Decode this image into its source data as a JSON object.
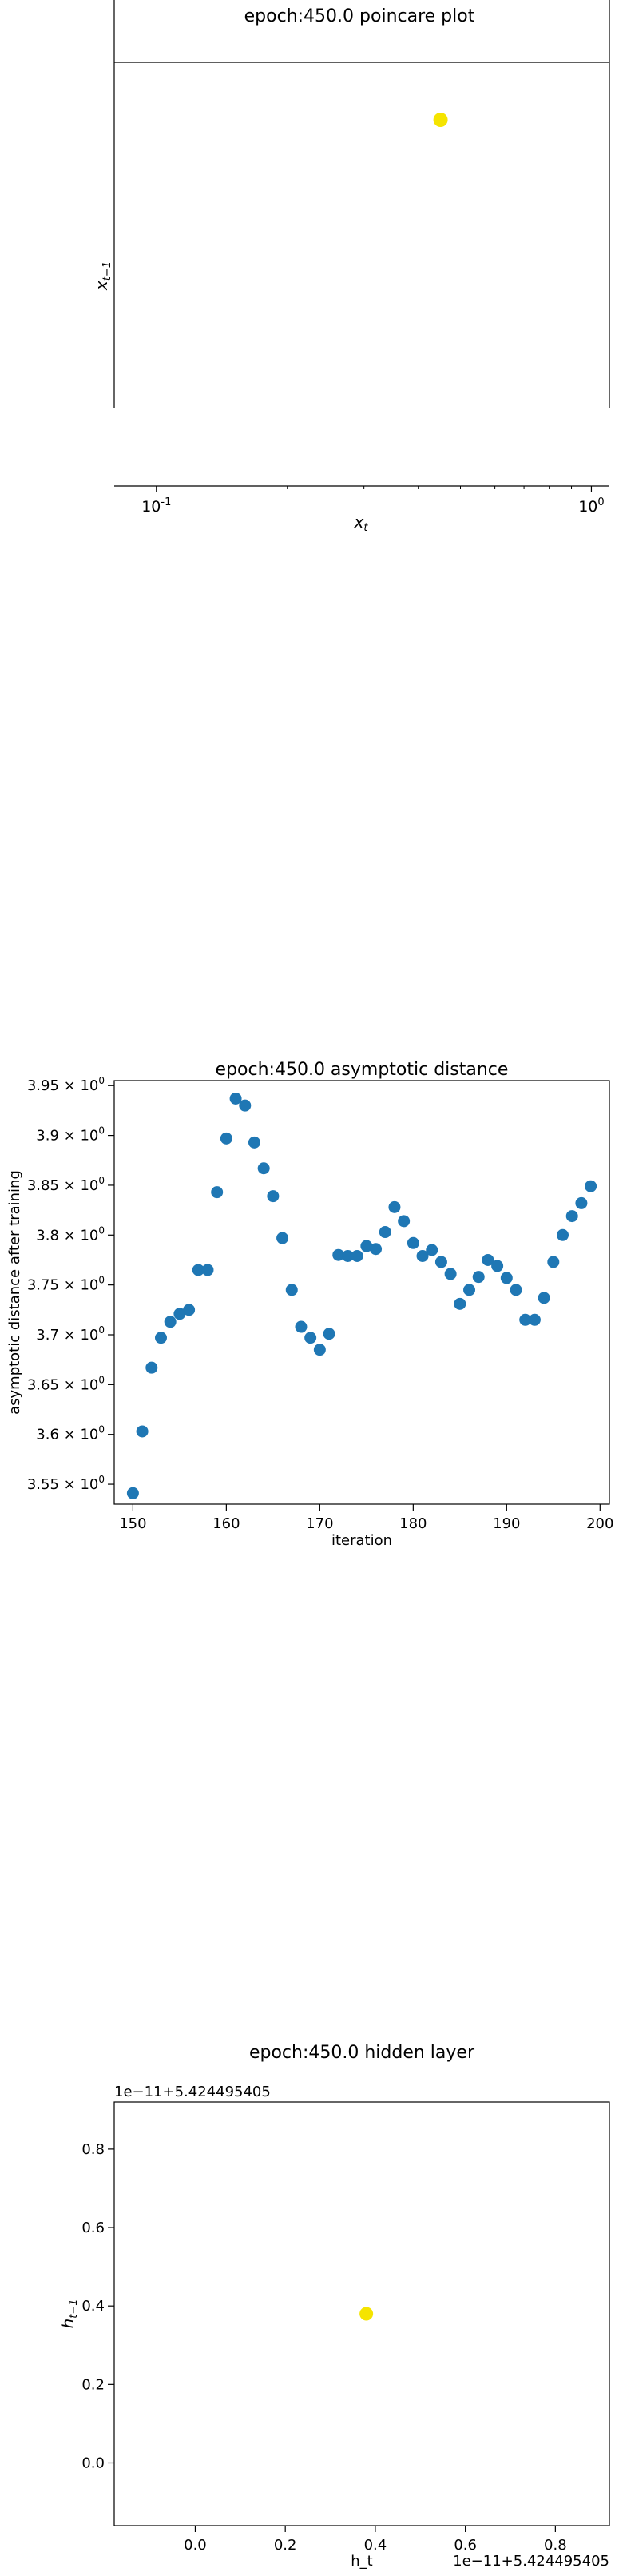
{
  "chart_data": [
    {
      "type": "scatter",
      "title": "epoch:450.0 poincare plot",
      "xlabel": "x_t",
      "ylabel": "x_{t-1}",
      "xscale": "log",
      "xlim": [
        0.08,
        1.1
      ],
      "x_ticks": [
        {
          "value": 0.1,
          "label": "10^{-1}"
        },
        {
          "value": 1.0,
          "label": "10^{0}"
        }
      ],
      "points": [
        {
          "x": 0.45,
          "y": 0.45
        }
      ],
      "marker_color": "#f5e400",
      "grid": false
    },
    {
      "type": "scatter",
      "title": "epoch:450.0 asymptotic distance",
      "xlabel": "iteration",
      "ylabel": "asymptotic distance after training",
      "xlim": [
        148,
        201
      ],
      "ylim": [
        3.53,
        3.955
      ],
      "x_ticks": [
        150,
        160,
        170,
        180,
        190,
        200
      ],
      "y_ticks": [
        {
          "value": 3.55,
          "label": "3.55 × 10^0"
        },
        {
          "value": 3.6,
          "label": "3.6 × 10^0"
        },
        {
          "value": 3.65,
          "label": "3.65 × 10^0"
        },
        {
          "value": 3.7,
          "label": "3.7 × 10^0"
        },
        {
          "value": 3.75,
          "label": "3.75 × 10^0"
        },
        {
          "value": 3.8,
          "label": "3.8 × 10^0"
        },
        {
          "value": 3.85,
          "label": "3.85 × 10^0"
        },
        {
          "value": 3.9,
          "label": "3.9 × 10^0"
        },
        {
          "value": 3.95,
          "label": "3.95 × 10^0"
        }
      ],
      "x": [
        150,
        151,
        152,
        153,
        154,
        155,
        156,
        157,
        158,
        159,
        160,
        161,
        162,
        163,
        164,
        165,
        166,
        167,
        168,
        169,
        170,
        171,
        172,
        173,
        174,
        175,
        176,
        177,
        178,
        179,
        180,
        181,
        182,
        183,
        184,
        185,
        186,
        187,
        188,
        189,
        190,
        191,
        192,
        193,
        194,
        195,
        196,
        197,
        198,
        199
      ],
      "y": [
        3.541,
        3.603,
        3.667,
        3.697,
        3.713,
        3.721,
        3.725,
        3.765,
        3.765,
        3.843,
        3.897,
        3.937,
        3.93,
        3.893,
        3.867,
        3.839,
        3.797,
        3.745,
        3.708,
        3.697,
        3.685,
        3.701,
        3.78,
        3.779,
        3.779,
        3.789,
        3.786,
        3.803,
        3.828,
        3.814,
        3.792,
        3.779,
        3.785,
        3.773,
        3.761,
        3.731,
        3.745,
        3.758,
        3.775,
        3.769,
        3.757,
        3.745,
        3.715,
        3.715,
        3.737,
        3.773,
        3.8,
        3.819,
        3.832,
        3.849
      ],
      "marker_color": "#1f77b4",
      "grid": false
    },
    {
      "type": "scatter",
      "title": "epoch:450.0 hidden layer",
      "xlabel": "h_t",
      "ylabel": "h_{t-1}",
      "x_offset_label": "1e−11+5.424495405",
      "y_offset_label": "1e−11+5.424495405",
      "xlim": [
        -0.18,
        0.92
      ],
      "ylim": [
        -0.16,
        0.92
      ],
      "x_ticks": [
        0.0,
        0.2,
        0.4,
        0.6,
        0.8
      ],
      "y_ticks": [
        0.0,
        0.2,
        0.4,
        0.6,
        0.8
      ],
      "points": [
        {
          "x": 0.38,
          "y": 0.38
        }
      ],
      "marker_color": "#f5e400",
      "grid": false
    }
  ]
}
